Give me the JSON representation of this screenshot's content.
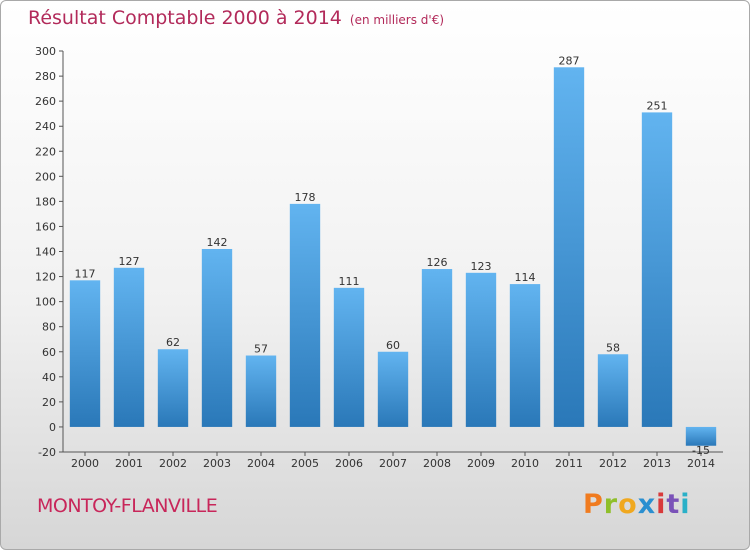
{
  "header": {
    "title": "Résultat Comptable 2000 à 2014",
    "subtitle": "(en milliers d'€)"
  },
  "footer": {
    "town": "MONTOY-FLANVILLE",
    "logo_text": "Proxiti",
    "logo_colors": [
      "#f07b1f",
      "#8fbf2a",
      "#f0a81f",
      "#2a8fd0",
      "#d83a3a",
      "#7a52b8",
      "#2ab0c8"
    ]
  },
  "colors": {
    "bar_light": "#62b4f0",
    "bar_dark": "#2a78b8",
    "title": "#b22a5a"
  },
  "chart_data": {
    "type": "bar",
    "title": "Résultat Comptable 2000 à 2014",
    "xlabel": "",
    "ylabel": "",
    "categories": [
      "2000",
      "2001",
      "2002",
      "2003",
      "2004",
      "2005",
      "2006",
      "2007",
      "2008",
      "2009",
      "2010",
      "2011",
      "2012",
      "2013",
      "2014"
    ],
    "values": [
      117,
      127,
      62,
      142,
      57,
      178,
      111,
      60,
      126,
      123,
      114,
      287,
      58,
      251,
      -15
    ],
    "ylim": [
      -20,
      300
    ],
    "yticks": [
      -20,
      0,
      20,
      40,
      60,
      80,
      100,
      120,
      140,
      160,
      180,
      200,
      220,
      240,
      260,
      280,
      300
    ],
    "grid": false,
    "data_labels": true
  }
}
